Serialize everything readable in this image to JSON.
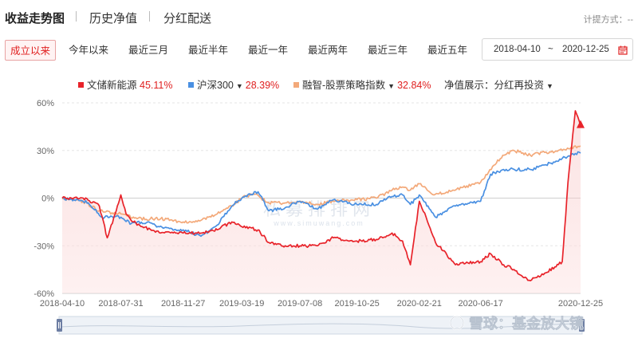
{
  "tabs": {
    "items": [
      {
        "label": "收益走势图",
        "active": true
      },
      {
        "label": "历史净值",
        "active": false
      },
      {
        "label": "分红配送",
        "active": false
      }
    ],
    "calc_label": "计提方式：--"
  },
  "ranges": {
    "items": [
      {
        "label": "成立以来",
        "active": true
      },
      {
        "label": "今年以来",
        "active": false
      },
      {
        "label": "最近三月",
        "active": false
      },
      {
        "label": "最近半年",
        "active": false
      },
      {
        "label": "最近一年",
        "active": false
      },
      {
        "label": "最近两年",
        "active": false
      },
      {
        "label": "最近三年",
        "active": false
      },
      {
        "label": "最近五年",
        "active": false
      }
    ],
    "start_date": "2018-04-10",
    "separator": "~",
    "end_date": "2020-12-25",
    "calendar_icon": "calendar-icon"
  },
  "legend": {
    "items": [
      {
        "name": "文储新能源",
        "ret": "45.11%",
        "color": "#e8232a",
        "dropdown": false
      },
      {
        "name": "沪深300",
        "ret": "28.39%",
        "color": "#4a90e2",
        "dropdown": true
      },
      {
        "name": "融智-股票策略指数",
        "ret": "32.84%",
        "color": "#f3a97a",
        "dropdown": true
      }
    ],
    "display_label": "净值展示：分红再投资"
  },
  "watermark": {
    "center_text": "私募排排网",
    "center_sub": "www.simuwang.com",
    "corner_text": "雪球：基金放大镜"
  },
  "chart_data": {
    "type": "line",
    "x_start": "2018-04-10",
    "x_end": "2020-12-25",
    "x_ticks": [
      "2018-04-10",
      "2018-07-31",
      "2018-11-27",
      "2019-03-19",
      "2019-07-08",
      "2019-10-25",
      "2020-02-21",
      "2020-06-17",
      "2020-12-25"
    ],
    "ylim": [
      -60,
      60
    ],
    "y_ticks": [
      60,
      30,
      0,
      -30,
      -60
    ],
    "y_tick_labels": [
      "60%",
      "30%",
      "0%",
      "-30%",
      "-60%"
    ],
    "grid": true,
    "series": [
      {
        "name": "融智-股票策略指数",
        "color": "#f3a97a",
        "points": [
          [
            "2018-04-10",
            0
          ],
          [
            "2018-05-20",
            -2
          ],
          [
            "2018-06-20",
            -8
          ],
          [
            "2018-07-31",
            -10
          ],
          [
            "2018-08-31",
            -13
          ],
          [
            "2018-10-15",
            -13
          ],
          [
            "2018-11-27",
            -15
          ],
          [
            "2018-12-31",
            -14
          ],
          [
            "2019-01-31",
            -10
          ],
          [
            "2019-02-28",
            -5
          ],
          [
            "2019-03-19",
            0
          ],
          [
            "2019-04-10",
            3
          ],
          [
            "2019-05-10",
            -3
          ],
          [
            "2019-06-10",
            -3
          ],
          [
            "2019-07-08",
            -2
          ],
          [
            "2019-08-10",
            -4
          ],
          [
            "2019-09-10",
            -2
          ],
          [
            "2019-10-25",
            -1
          ],
          [
            "2019-12-01",
            0
          ],
          [
            "2019-12-31",
            5
          ],
          [
            "2020-01-20",
            7
          ],
          [
            "2020-02-04",
            5
          ],
          [
            "2020-02-21",
            9
          ],
          [
            "2020-03-20",
            2
          ],
          [
            "2020-04-30",
            5
          ],
          [
            "2020-06-17",
            10
          ],
          [
            "2020-07-10",
            20
          ],
          [
            "2020-08-01",
            27
          ],
          [
            "2020-08-20",
            30
          ],
          [
            "2020-09-20",
            27
          ],
          [
            "2020-10-20",
            29
          ],
          [
            "2020-11-20",
            30
          ],
          [
            "2020-12-25",
            32.84
          ]
        ]
      },
      {
        "name": "沪深300",
        "color": "#4a90e2",
        "points": [
          [
            "2018-04-10",
            0
          ],
          [
            "2018-05-10",
            -1
          ],
          [
            "2018-05-30",
            -3
          ],
          [
            "2018-06-25",
            -12
          ],
          [
            "2018-07-31",
            -12
          ],
          [
            "2018-08-20",
            -16
          ],
          [
            "2018-09-20",
            -15
          ],
          [
            "2018-10-20",
            -19
          ],
          [
            "2018-11-27",
            -20
          ],
          [
            "2018-12-31",
            -24
          ],
          [
            "2019-01-31",
            -17
          ],
          [
            "2019-02-28",
            -5
          ],
          [
            "2019-03-19",
            0
          ],
          [
            "2019-04-19",
            4
          ],
          [
            "2019-05-10",
            -8
          ],
          [
            "2019-06-10",
            -6
          ],
          [
            "2019-07-08",
            -2
          ],
          [
            "2019-08-10",
            -7
          ],
          [
            "2019-09-10",
            -1
          ],
          [
            "2019-10-25",
            -4
          ],
          [
            "2019-12-01",
            -4
          ],
          [
            "2019-12-31",
            1
          ],
          [
            "2020-01-20",
            2
          ],
          [
            "2020-02-04",
            -4
          ],
          [
            "2020-02-21",
            2
          ],
          [
            "2020-03-23",
            -12
          ],
          [
            "2020-04-30",
            -5
          ],
          [
            "2020-06-17",
            -2
          ],
          [
            "2020-07-06",
            15
          ],
          [
            "2020-07-31",
            18
          ],
          [
            "2020-09-20",
            18
          ],
          [
            "2020-10-20",
            21
          ],
          [
            "2020-11-20",
            25
          ],
          [
            "2020-12-10",
            28
          ],
          [
            "2020-12-25",
            28.39
          ]
        ]
      },
      {
        "name": "文储新能源",
        "color": "#e8232a",
        "points": [
          [
            "2018-04-10",
            0
          ],
          [
            "2018-05-20",
            0
          ],
          [
            "2018-06-20",
            -5
          ],
          [
            "2018-07-05",
            -25
          ],
          [
            "2018-07-20",
            -10
          ],
          [
            "2018-07-31",
            2
          ],
          [
            "2018-08-10",
            -10
          ],
          [
            "2018-08-31",
            -17
          ],
          [
            "2018-10-15",
            -22
          ],
          [
            "2018-11-27",
            -22
          ],
          [
            "2018-12-31",
            -22
          ],
          [
            "2019-01-31",
            -20
          ],
          [
            "2019-02-28",
            -15
          ],
          [
            "2019-03-19",
            -18
          ],
          [
            "2019-04-19",
            -20
          ],
          [
            "2019-05-10",
            -28
          ],
          [
            "2019-06-10",
            -30
          ],
          [
            "2019-07-08",
            -30
          ],
          [
            "2019-08-10",
            -30
          ],
          [
            "2019-09-10",
            -25
          ],
          [
            "2019-10-25",
            -27
          ],
          [
            "2019-12-01",
            -26
          ],
          [
            "2019-12-31",
            -22
          ],
          [
            "2020-01-20",
            -27
          ],
          [
            "2020-02-04",
            -42
          ],
          [
            "2020-02-21",
            -2
          ],
          [
            "2020-03-05",
            -12
          ],
          [
            "2020-03-23",
            -28
          ],
          [
            "2020-04-30",
            -42
          ],
          [
            "2020-06-17",
            -40
          ],
          [
            "2020-07-06",
            -35
          ],
          [
            "2020-07-31",
            -42
          ],
          [
            "2020-08-20",
            -45
          ],
          [
            "2020-09-20",
            -52
          ],
          [
            "2020-10-20",
            -47
          ],
          [
            "2020-11-20",
            -40
          ],
          [
            "2020-12-01",
            10
          ],
          [
            "2020-12-10",
            40
          ],
          [
            "2020-12-15",
            55
          ],
          [
            "2020-12-25",
            45.11
          ]
        ]
      }
    ]
  }
}
